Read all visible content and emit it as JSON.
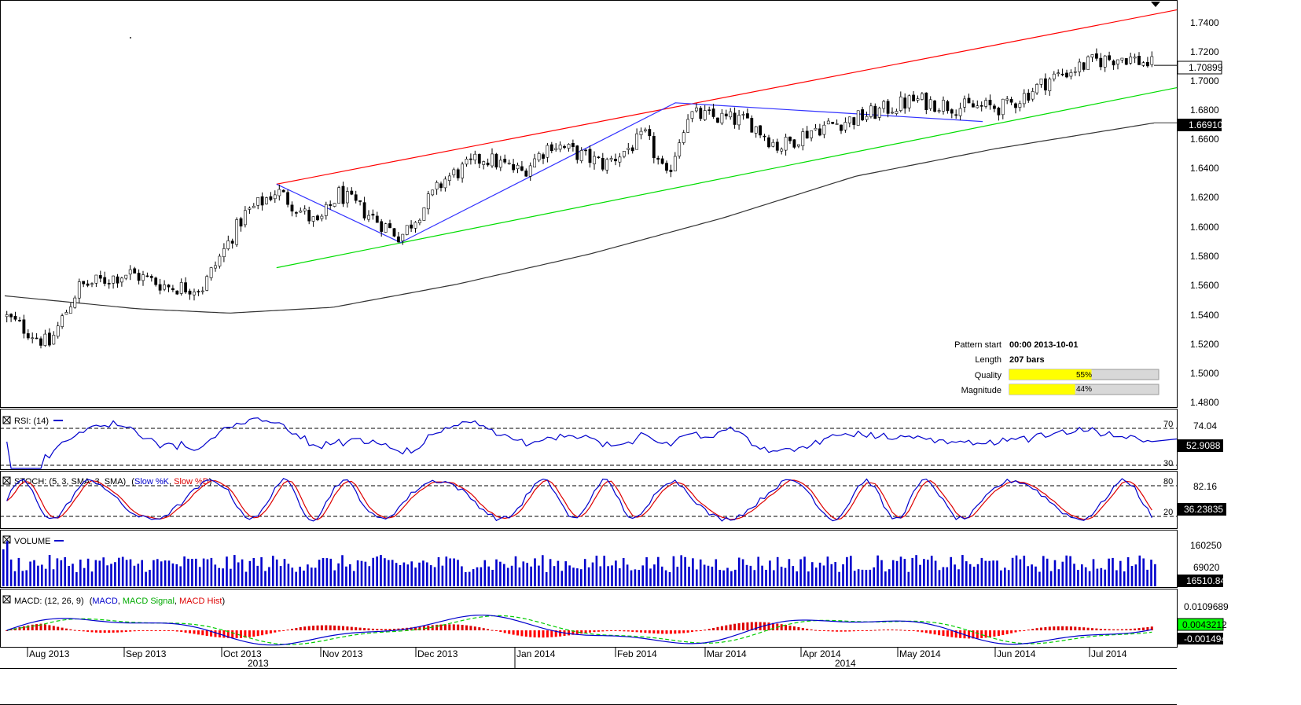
{
  "main": {
    "y_ticks": [
      "1.7400",
      "1.7200",
      "1.7000",
      "1.6800",
      "1.6600",
      "1.6400",
      "1.6200",
      "1.6000",
      "1.5800",
      "1.5600",
      "1.5400",
      "1.5200",
      "1.5000",
      "1.4800"
    ],
    "price_badge": "1.70899",
    "ma_badge": "1.66910",
    "pattern_info": {
      "start_label": "Pattern start",
      "start_value": "00:00 2013-10-01",
      "length_label": "Length",
      "length_value": "207 bars",
      "quality_label": "Quality",
      "quality_value": "55%",
      "quality_fraction": 0.55,
      "magnitude_label": "Magnitude",
      "magnitude_value": "44%",
      "magnitude_fraction": 0.44
    }
  },
  "rsi": {
    "title": "RSI: (14)",
    "level_high": "70",
    "level_low": "30",
    "axis_top": "74.04",
    "badge": "52.9088"
  },
  "stoch": {
    "title_prefix": "STOCH: (5, 3, SMA, 3, SMA)",
    "k_label": "Slow %K",
    "d_label": "Slow %D",
    "level_high": "80",
    "level_low": "20",
    "axis_top": "82.16",
    "badge": "36.23835"
  },
  "volume": {
    "title": "VOLUME",
    "axis_top": "160250",
    "axis_mid": "69020",
    "badge": "16510.84"
  },
  "macd": {
    "title_prefix": "MACD: (12, 26, 9)",
    "macd_label": "MACD",
    "signal_label": "MACD Signal",
    "hist_label": "MACD Hist",
    "axis_top": "0.0109689",
    "badge_signal": "0.0043212",
    "badge_hist": "-0.001494"
  },
  "x_axis": {
    "months": [
      "Aug 2013",
      "Sep 2013",
      "Oct 2013",
      "Nov 2013",
      "Dec 2013",
      "Jan 2014",
      "Feb 2014",
      "Mar 2014",
      "Apr 2014",
      "May 2014",
      "Jun 2014",
      "Jul 2014"
    ],
    "years": [
      "2013",
      "2014"
    ]
  },
  "colors": {
    "upper_channel": "#ff0000",
    "lower_channel": "#00dd00",
    "zigzag": "#3333ff",
    "moving_average": "#333333",
    "indicator_line": "#0000cc",
    "signal_line": "#dd0000",
    "macd_signal": "#00cc00",
    "volume_bar": "#0000cc",
    "bar_fill": "#ffff00"
  },
  "chart_data": {
    "type": "candlestick",
    "pattern": "Rising channel",
    "pattern_start": "00:00 2013-10-01",
    "length_bars": 207,
    "quality_pct": 55,
    "magnitude_pct": 44,
    "ylim": [
      1.475,
      1.75
    ],
    "last_close": 1.70899,
    "moving_average_last": 1.6691,
    "upper_channel": [
      {
        "date": "2013-10-01",
        "value": 1.6265
      },
      {
        "date": "2014-07-25",
        "value": 1.7475
      }
    ],
    "lower_channel": [
      {
        "date": "2013-10-01",
        "value": 1.5685
      },
      {
        "date": "2014-07-25",
        "value": 1.6935
      }
    ],
    "zigzag": [
      {
        "date": "2013-10-01",
        "value": 1.6265
      },
      {
        "date": "2013-11-12",
        "value": 1.586
      },
      {
        "date": "2014-02-13",
        "value": 1.683
      },
      {
        "date": "2014-05-28",
        "value": 1.67
      }
    ],
    "close_path": [
      {
        "date": "2013-07-01",
        "value": 1.535
      },
      {
        "date": "2013-07-16",
        "value": 1.515
      },
      {
        "date": "2013-07-26",
        "value": 1.555
      },
      {
        "date": "2013-08-12",
        "value": 1.565
      },
      {
        "date": "2013-08-26",
        "value": 1.555
      },
      {
        "date": "2013-09-06",
        "value": 1.555
      },
      {
        "date": "2013-09-20",
        "value": 1.605
      },
      {
        "date": "2013-10-01",
        "value": 1.622
      },
      {
        "date": "2013-10-15",
        "value": 1.598
      },
      {
        "date": "2013-10-22",
        "value": 1.62
      },
      {
        "date": "2013-11-12",
        "value": 1.59
      },
      {
        "date": "2013-11-27",
        "value": 1.63
      },
      {
        "date": "2013-12-10",
        "value": 1.645
      },
      {
        "date": "2013-12-23",
        "value": 1.635
      },
      {
        "date": "2014-01-02",
        "value": 1.655
      },
      {
        "date": "2014-01-20",
        "value": 1.64
      },
      {
        "date": "2014-02-03",
        "value": 1.66
      },
      {
        "date": "2014-02-10",
        "value": 1.63
      },
      {
        "date": "2014-02-17",
        "value": 1.675
      },
      {
        "date": "2014-03-10",
        "value": 1.67
      },
      {
        "date": "2014-03-20",
        "value": 1.652
      },
      {
        "date": "2014-04-01",
        "value": 1.665
      },
      {
        "date": "2014-04-15",
        "value": 1.672
      },
      {
        "date": "2014-05-05",
        "value": 1.685
      },
      {
        "date": "2014-05-20",
        "value": 1.68
      },
      {
        "date": "2014-06-05",
        "value": 1.68
      },
      {
        "date": "2014-06-20",
        "value": 1.7
      },
      {
        "date": "2014-07-05",
        "value": 1.712
      },
      {
        "date": "2014-07-15",
        "value": 1.715
      },
      {
        "date": "2014-07-25",
        "value": 1.709
      }
    ],
    "moving_average": [
      {
        "date": "2013-07-01",
        "value": 1.549
      },
      {
        "date": "2013-08-15",
        "value": 1.54
      },
      {
        "date": "2013-09-15",
        "value": 1.537
      },
      {
        "date": "2013-10-20",
        "value": 1.541
      },
      {
        "date": "2013-12-01",
        "value": 1.557
      },
      {
        "date": "2014-01-15",
        "value": 1.578
      },
      {
        "date": "2014-03-01",
        "value": 1.603
      },
      {
        "date": "2014-04-15",
        "value": 1.632
      },
      {
        "date": "2014-06-01",
        "value": 1.651
      },
      {
        "date": "2014-07-25",
        "value": 1.669
      }
    ]
  }
}
